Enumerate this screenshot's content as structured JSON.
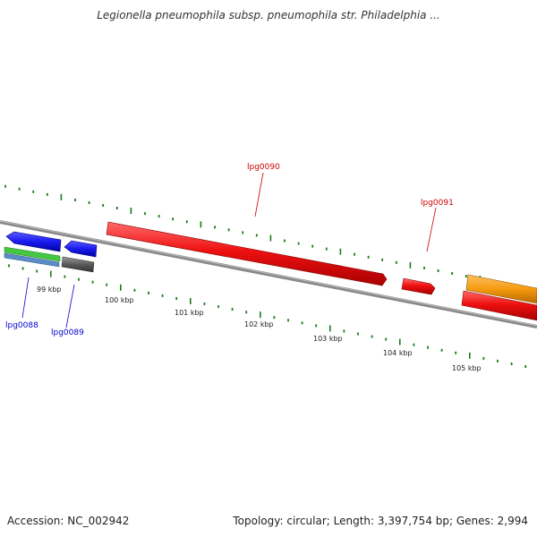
{
  "title": "Legionella pneumophila subsp. pneumophila str. Philadelphia ...",
  "footer": {
    "accession": "Accession: NC_002942",
    "summary": "Topology: circular; Length: 3,397,754 bp; Genes: 2,994"
  },
  "ruler": {
    "ticks": [
      "99 kbp",
      "100 kbp",
      "101 kbp",
      "102 kbp",
      "103 kbp",
      "104 kbp",
      "105 kbp"
    ]
  },
  "genes": {
    "lpg0088": "lpg0088",
    "lpg0089": "lpg0089",
    "lpg0090": "lpg0090",
    "lpg0091": "lpg0091"
  },
  "colors": {
    "backbone": "#808080",
    "tick": "#1a7a1a",
    "forward_gene": "#e01010",
    "reverse_gene": "#1010e0",
    "rna_green": "#40c040",
    "rna_steel": "#5b8cc8",
    "grey_feature": "#555555",
    "orange_feature": "#f59a10",
    "label_red": "#cc0000",
    "label_blue": "#0000cc"
  }
}
